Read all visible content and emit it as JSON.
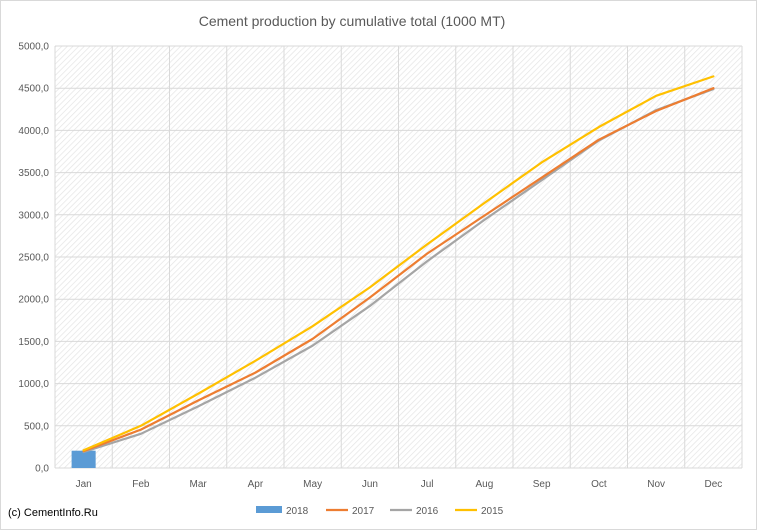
{
  "chart_data": {
    "type": "line",
    "title": "Cement production by cumulative total (1000 MT)",
    "categories": [
      "Jan",
      "Feb",
      "Mar",
      "Apr",
      "May",
      "Jun",
      "Jul",
      "Aug",
      "Sep",
      "Oct",
      "Nov",
      "Dec"
    ],
    "ylim": [
      0,
      5000
    ],
    "yticks": [
      0,
      500,
      1000,
      1500,
      2000,
      2500,
      3000,
      3500,
      4000,
      4500,
      5000
    ],
    "ytick_labels": [
      "0,0",
      "500,0",
      "1000,0",
      "1500,0",
      "2000,0",
      "2500,0",
      "3000,0",
      "3500,0",
      "4000,0",
      "4500,0",
      "5000,0"
    ],
    "xlabel": "",
    "ylabel": "",
    "grid": true,
    "legend_position": "bottom",
    "series": [
      {
        "name": "2018",
        "kind": "bar",
        "color": "#5b9bd5",
        "values": [
          205,
          null,
          null,
          null,
          null,
          null,
          null,
          null,
          null,
          null,
          null,
          null
        ]
      },
      {
        "name": "2017",
        "kind": "line",
        "color": "#ed7d31",
        "values": [
          200,
          455,
          800,
          1130,
          1530,
          2020,
          2540,
          2990,
          3440,
          3890,
          4230,
          4500
        ]
      },
      {
        "name": "2016",
        "kind": "line",
        "color": "#a5a5a5",
        "values": [
          190,
          405,
          730,
          1070,
          1450,
          1920,
          2450,
          2940,
          3410,
          3880,
          4240,
          4490
        ]
      },
      {
        "name": "2015",
        "kind": "line",
        "color": "#ffc000",
        "values": [
          210,
          500,
          880,
          1270,
          1680,
          2140,
          2650,
          3140,
          3620,
          4040,
          4410,
          4640
        ]
      }
    ]
  },
  "footer": {
    "credit": "(c) CementInfo.Ru"
  }
}
